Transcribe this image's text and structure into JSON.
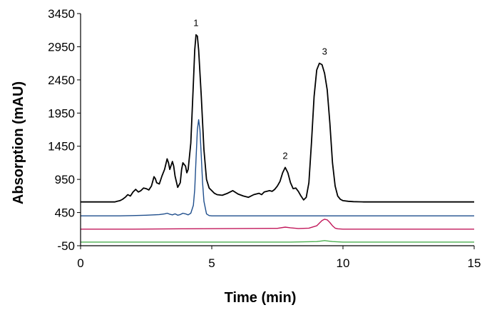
{
  "chart_data": {
    "type": "line",
    "xlabel": "Time (min)",
    "ylabel": "Absorption (mAU)",
    "xlim": [
      0,
      15
    ],
    "ylim": [
      -50,
      3450
    ],
    "x_ticks": [
      "0",
      "5",
      "10",
      "15"
    ],
    "y_ticks": [
      "-50",
      "450",
      "950",
      "1450",
      "1950",
      "2450",
      "2950",
      "3450"
    ],
    "grid": false,
    "legend": "none",
    "series": [
      {
        "color": "#000000",
        "x": [
          0.0,
          1.3,
          1.4,
          1.5,
          1.6,
          1.7,
          1.8,
          1.9,
          2.0,
          2.1,
          2.2,
          2.3,
          2.4,
          2.5,
          2.6,
          2.7,
          2.8,
          2.85,
          2.9,
          3.0,
          3.1,
          3.2,
          3.3,
          3.35,
          3.4,
          3.5,
          3.55,
          3.6,
          3.7,
          3.8,
          3.85,
          3.9,
          4.0,
          4.05,
          4.1,
          4.2,
          4.3,
          4.35,
          4.4,
          4.45,
          4.5,
          4.6,
          4.7,
          4.8,
          4.9,
          5.0,
          5.1,
          5.2,
          5.4,
          5.6,
          5.8,
          6.0,
          6.2,
          6.4,
          6.6,
          6.8,
          6.9,
          7.0,
          7.2,
          7.3,
          7.4,
          7.5,
          7.6,
          7.7,
          7.8,
          7.9,
          8.0,
          8.1,
          8.2,
          8.3,
          8.4,
          8.5,
          8.6,
          8.7,
          8.8,
          8.9,
          9.0,
          9.1,
          9.2,
          9.3,
          9.4,
          9.5,
          9.6,
          9.7,
          9.8,
          9.9,
          10.0,
          10.2,
          10.4,
          10.6,
          10.8,
          11.0,
          12.0,
          13.0,
          14.0,
          15.0
        ],
        "y": [
          610,
          610,
          620,
          630,
          650,
          680,
          720,
          700,
          760,
          800,
          760,
          780,
          820,
          810,
          790,
          850,
          990,
          960,
          900,
          880,
          1000,
          1100,
          1260,
          1200,
          1100,
          1220,
          1150,
          1000,
          830,
          900,
          1100,
          1200,
          1150,
          1050,
          1100,
          1500,
          2400,
          2900,
          3130,
          3110,
          2900,
          2200,
          1400,
          950,
          820,
          780,
          740,
          720,
          710,
          740,
          780,
          730,
          700,
          680,
          720,
          740,
          720,
          760,
          780,
          770,
          800,
          850,
          920,
          1050,
          1130,
          1050,
          900,
          810,
          820,
          770,
          700,
          640,
          680,
          900,
          1500,
          2200,
          2600,
          2700,
          2680,
          2550,
          2300,
          1800,
          1200,
          850,
          700,
          650,
          630,
          620,
          615,
          612,
          610,
          610,
          610,
          610,
          610,
          610
        ]
      },
      {
        "color": "#1f4e8c",
        "x": [
          0.0,
          1.5,
          2.0,
          2.5,
          3.0,
          3.2,
          3.3,
          3.4,
          3.5,
          3.6,
          3.7,
          3.8,
          3.9,
          4.0,
          4.1,
          4.2,
          4.3,
          4.35,
          4.4,
          4.45,
          4.5,
          4.55,
          4.6,
          4.65,
          4.7,
          4.8,
          4.9,
          5.0,
          5.5,
          7.0,
          9.0,
          12.0,
          15.0
        ],
        "y": [
          400,
          400,
          405,
          410,
          420,
          430,
          440,
          425,
          415,
          430,
          410,
          420,
          440,
          430,
          415,
          440,
          560,
          800,
          1250,
          1700,
          1850,
          1700,
          1300,
          900,
          620,
          430,
          405,
          400,
          400,
          400,
          400,
          400,
          400
        ]
      },
      {
        "color": "#c2185b",
        "x": [
          0.0,
          2.0,
          4.0,
          6.0,
          7.5,
          7.8,
          8.0,
          8.3,
          8.7,
          9.0,
          9.1,
          9.2,
          9.3,
          9.4,
          9.5,
          9.6,
          9.7,
          9.8,
          10.0,
          12.0,
          15.0
        ],
        "y": [
          200,
          200,
          205,
          210,
          212,
          230,
          220,
          210,
          215,
          250,
          290,
          330,
          350,
          340,
          300,
          250,
          215,
          205,
          200,
          200,
          200
        ]
      },
      {
        "color": "#4caf50",
        "x": [
          0.0,
          4.0,
          8.0,
          9.0,
          9.2,
          9.3,
          9.4,
          9.6,
          10.0,
          15.0
        ],
        "y": [
          5,
          5,
          5,
          12,
          22,
          28,
          22,
          12,
          5,
          5
        ]
      }
    ],
    "annotations": [
      {
        "text": "1",
        "x": 4.4,
        "y": 3130
      },
      {
        "text": "2",
        "x": 7.8,
        "y": 1130
      },
      {
        "text": "3",
        "x": 9.3,
        "y": 2700
      }
    ]
  }
}
